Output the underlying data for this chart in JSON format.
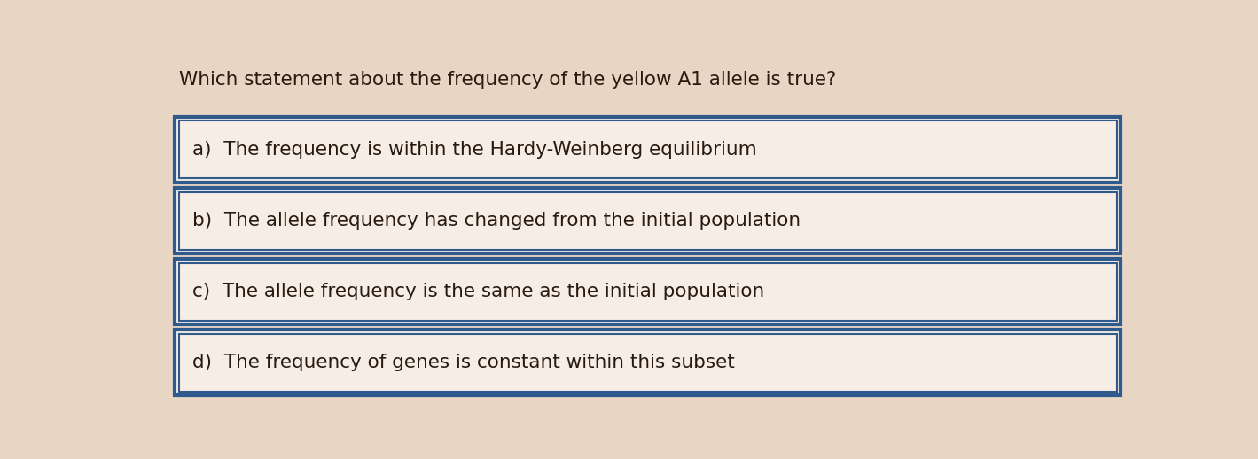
{
  "title": "Which statement about the frequency of the yellow A1 allele is true?",
  "options": [
    "a)  The frequency is within the Hardy-Weinberg equilibrium",
    "b)  The allele frequency has changed from the initial population",
    "c)  The allele frequency is the same as the initial population",
    "d)  The frequency of genes is constant within this subset"
  ],
  "bg_color": "#e8d5c4",
  "box_bg_color": "#f5ede6",
  "box_edge_color": "#2e5a8e",
  "title_color": "#2a1a0e",
  "text_color": "#2a1a0e",
  "title_fontsize": 15.5,
  "option_fontsize": 15.5,
  "figsize": [
    14.19,
    5.18
  ],
  "dpi": 100
}
